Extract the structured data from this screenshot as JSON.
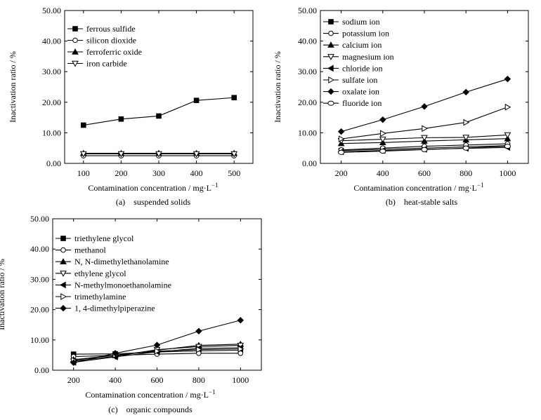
{
  "chart_data": [
    {
      "type": "line",
      "caption": "(a)    suspended solids",
      "xlabel": "Contamination concentration / mg·L",
      "xlabel_sup": "−1",
      "ylabel": "Inactivation ratio / %",
      "x": [
        100,
        200,
        300,
        400,
        500
      ],
      "xticks": [
        "100",
        "200",
        "300",
        "400",
        "500"
      ],
      "xlim": [
        50,
        550
      ],
      "ylim": [
        0,
        50
      ],
      "yticks": [
        "0.00",
        "10.00",
        "20.00",
        "30.00",
        "40.00",
        "50.00"
      ],
      "series": [
        {
          "name": "ferrous sulfide",
          "marker": "square",
          "values": [
            12.5,
            14.5,
            15.5,
            20.6,
            21.5
          ]
        },
        {
          "name": "silicon dioxide",
          "marker": "circle",
          "values": [
            2.5,
            2.5,
            2.5,
            2.5,
            2.5
          ]
        },
        {
          "name": "ferroferric oxide",
          "marker": "triangle-up",
          "values": [
            3.3,
            3.3,
            3.3,
            3.3,
            3.3
          ]
        },
        {
          "name": "iron carbide",
          "marker": "triangle-down",
          "values": [
            3.1,
            3.1,
            3.1,
            3.1,
            3.1
          ]
        }
      ]
    },
    {
      "type": "line",
      "caption": "(b)    heat-stable salts",
      "xlabel": "Contamination concentration / mg·L",
      "xlabel_sup": "−1",
      "ylabel": "Inactivation ratio / %",
      "x": [
        200,
        400,
        600,
        800,
        1000
      ],
      "xticks": [
        "200",
        "400",
        "600",
        "800",
        "1000"
      ],
      "xlim": [
        100,
        1100
      ],
      "ylim": [
        0,
        50
      ],
      "yticks": [
        "0.00",
        "10.00",
        "20.00",
        "30.00",
        "40.00",
        "50.00"
      ],
      "series": [
        {
          "name": "sodium ion",
          "marker": "square",
          "values": [
            4.2,
            4.6,
            5.0,
            5.4,
            5.8
          ]
        },
        {
          "name": "potassium ion",
          "marker": "circle",
          "values": [
            4.4,
            5.0,
            5.6,
            6.0,
            6.4
          ]
        },
        {
          "name": "calcium ion",
          "marker": "triangle-up",
          "values": [
            6.5,
            6.8,
            7.3,
            7.7,
            8.1
          ]
        },
        {
          "name": "magnesium ion",
          "marker": "triangle-down",
          "values": [
            7.4,
            7.9,
            8.4,
            8.5,
            9.3
          ]
        },
        {
          "name": "chloride ion",
          "marker": "triangle-left",
          "values": [
            3.8,
            4.2,
            4.6,
            4.9,
            5.2
          ]
        },
        {
          "name": "sulfate ion",
          "marker": "triangle-right",
          "values": [
            8.0,
            9.8,
            11.4,
            13.4,
            18.4
          ]
        },
        {
          "name": "oxalate ion",
          "marker": "diamond",
          "values": [
            10.4,
            14.3,
            18.6,
            23.3,
            27.6
          ]
        },
        {
          "name": "fluoride ion",
          "marker": "hexagon",
          "values": [
            3.6,
            4.0,
            4.5,
            5.0,
            5.6
          ]
        }
      ]
    },
    {
      "type": "line",
      "caption": "(c)    organic compounds",
      "xlabel": "Contamination concentration / mg·L",
      "xlabel_sup": "−1",
      "ylabel": "Inactivation ratio / %",
      "x": [
        200,
        400,
        600,
        800,
        1000
      ],
      "xticks": [
        "200",
        "400",
        "600",
        "800",
        "1000"
      ],
      "xlim": [
        100,
        1100
      ],
      "ylim": [
        0,
        50
      ],
      "yticks": [
        "0.00",
        "10.00",
        "20.00",
        "30.00",
        "40.00",
        "50.00"
      ],
      "series": [
        {
          "name": "triethylene glycol",
          "marker": "square",
          "values": [
            5.3,
            5.4,
            6.0,
            6.4,
            6.6
          ]
        },
        {
          "name": "methanol",
          "marker": "circle",
          "values": [
            4.5,
            4.9,
            5.3,
            5.6,
            5.6
          ]
        },
        {
          "name": "N, N-dimethylethanolamine",
          "marker": "triangle-up",
          "values": [
            3.5,
            4.9,
            6.6,
            8.2,
            8.6
          ]
        },
        {
          "name": "ethylene glycol",
          "marker": "triangle-down",
          "values": [
            3.0,
            4.6,
            6.8,
            7.8,
            8.2
          ]
        },
        {
          "name": "N-methylmonoethanolamine",
          "marker": "triangle-left",
          "values": [
            2.6,
            4.4,
            6.1,
            7.2,
            7.4
          ]
        },
        {
          "name": "trimethylamine",
          "marker": "triangle-right",
          "values": [
            3.3,
            5.0,
            6.3,
            6.8,
            7.0
          ]
        },
        {
          "name": "1, 4-dimethylpiperazine",
          "marker": "diamond",
          "values": [
            2.5,
            5.6,
            8.3,
            12.9,
            16.5
          ]
        }
      ]
    }
  ]
}
